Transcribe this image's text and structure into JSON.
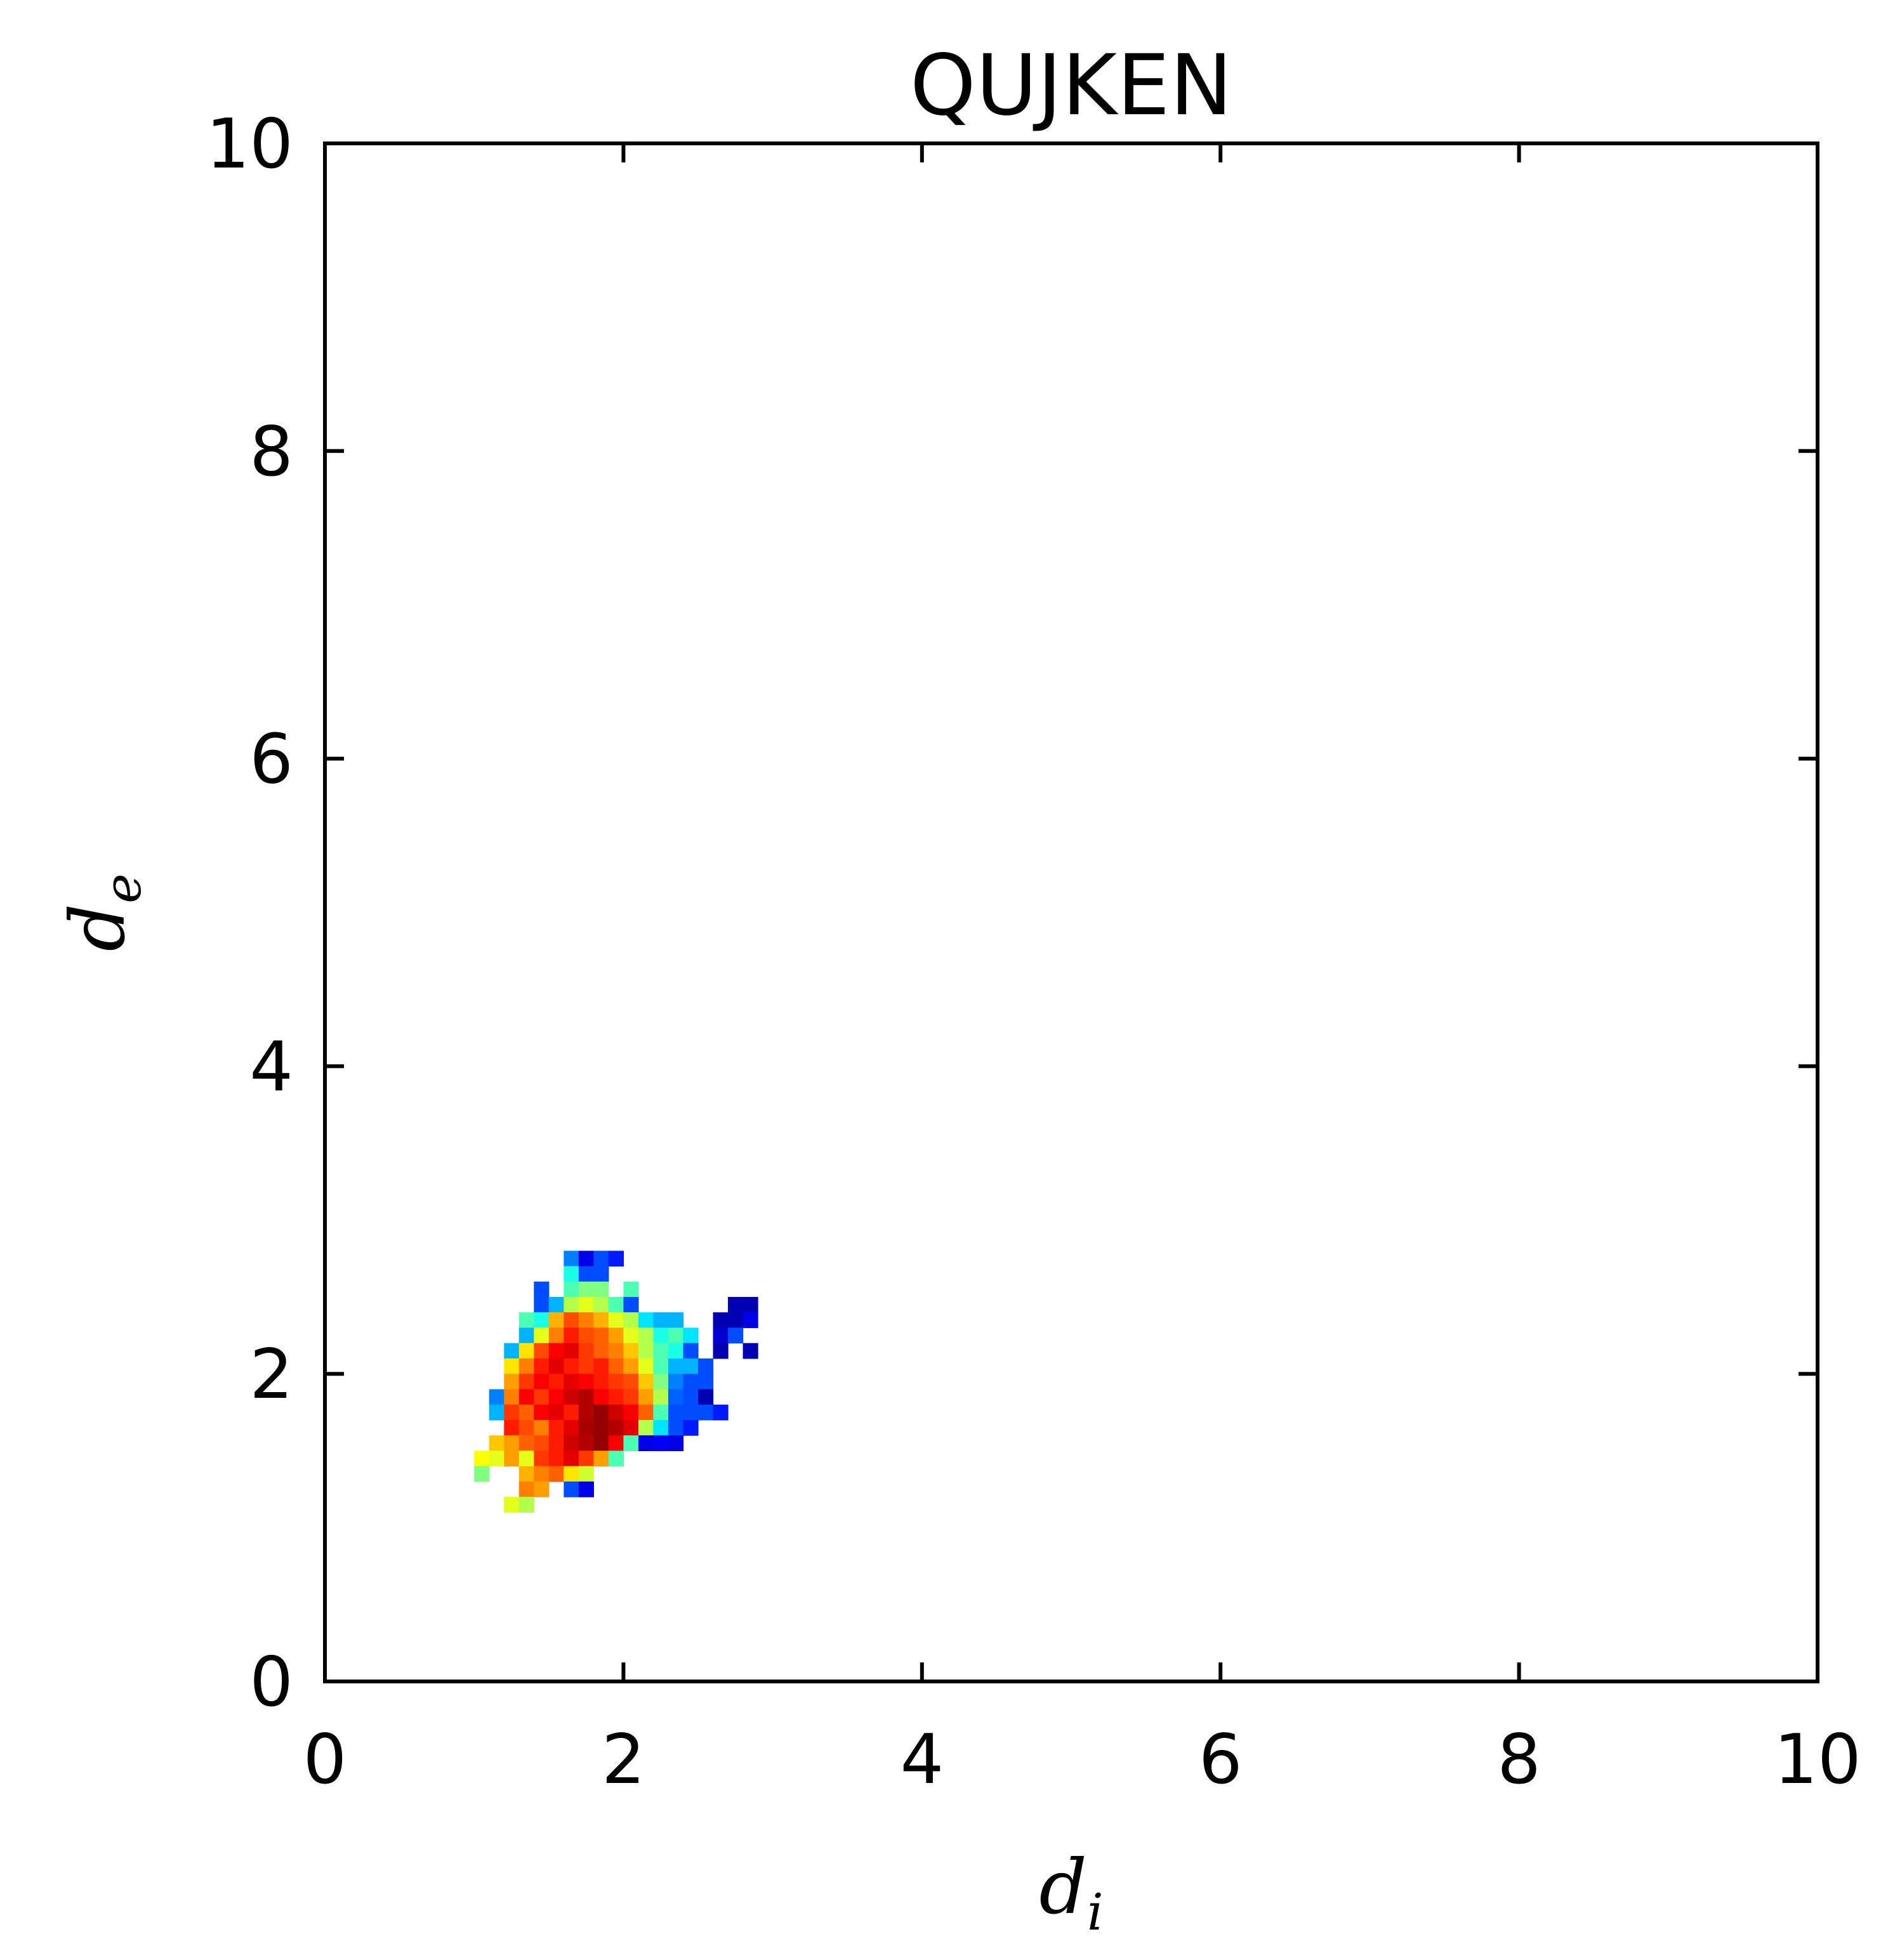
{
  "chart_data": {
    "type": "heatmap",
    "title": "QUJKEN",
    "xlabel": {
      "symbol": "d",
      "sub": "i"
    },
    "ylabel": {
      "symbol": "d",
      "sub": "e"
    },
    "xlim": [
      0,
      10
    ],
    "ylim": [
      0,
      10
    ],
    "xticks": [
      "0",
      "2",
      "4",
      "6",
      "8",
      "10"
    ],
    "yticks": [
      "0",
      "2",
      "4",
      "6",
      "8",
      "10"
    ],
    "bin_size": 0.1,
    "colormap": "jet",
    "grid": false,
    "cells": [
      [
        1.6,
        2.7,
        0.25
      ],
      [
        1.7,
        2.7,
        0.1
      ],
      [
        1.8,
        2.7,
        0.2
      ],
      [
        1.9,
        2.7,
        0.15
      ],
      [
        1.6,
        2.6,
        0.4
      ],
      [
        1.7,
        2.6,
        0.2
      ],
      [
        1.8,
        2.6,
        0.2
      ],
      [
        1.4,
        2.5,
        0.2
      ],
      [
        1.6,
        2.5,
        0.45
      ],
      [
        1.7,
        2.5,
        0.5
      ],
      [
        1.8,
        2.5,
        0.5
      ],
      [
        2.0,
        2.5,
        0.45
      ],
      [
        1.4,
        2.4,
        0.2
      ],
      [
        1.5,
        2.4,
        0.3
      ],
      [
        1.6,
        2.4,
        0.55
      ],
      [
        1.7,
        2.4,
        0.6
      ],
      [
        1.8,
        2.4,
        0.55
      ],
      [
        1.9,
        2.4,
        0.45
      ],
      [
        2.0,
        2.4,
        0.2
      ],
      [
        2.7,
        2.4,
        0.05
      ],
      [
        2.8,
        2.4,
        0.05
      ],
      [
        1.3,
        2.3,
        0.45
      ],
      [
        1.4,
        2.3,
        0.4
      ],
      [
        1.5,
        2.3,
        0.7
      ],
      [
        1.6,
        2.3,
        0.8
      ],
      [
        1.7,
        2.3,
        0.75
      ],
      [
        1.8,
        2.3,
        0.7
      ],
      [
        1.9,
        2.3,
        0.6
      ],
      [
        2.0,
        2.3,
        0.55
      ],
      [
        2.1,
        2.3,
        0.35
      ],
      [
        2.2,
        2.3,
        0.3
      ],
      [
        2.3,
        2.3,
        0.3
      ],
      [
        2.6,
        2.3,
        0.05
      ],
      [
        2.7,
        2.3,
        0.05
      ],
      [
        2.8,
        2.3,
        0.1
      ],
      [
        1.3,
        2.2,
        0.3
      ],
      [
        1.4,
        2.2,
        0.6
      ],
      [
        1.5,
        2.2,
        0.75
      ],
      [
        1.6,
        2.2,
        0.85
      ],
      [
        1.7,
        2.2,
        0.8
      ],
      [
        1.8,
        2.2,
        0.78
      ],
      [
        1.9,
        2.2,
        0.72
      ],
      [
        2.0,
        2.2,
        0.6
      ],
      [
        2.1,
        2.2,
        0.55
      ],
      [
        2.2,
        2.2,
        0.4
      ],
      [
        2.3,
        2.2,
        0.45
      ],
      [
        2.4,
        2.2,
        0.35
      ],
      [
        2.6,
        2.2,
        0.08
      ],
      [
        2.7,
        2.2,
        0.2
      ],
      [
        1.2,
        2.1,
        0.3
      ],
      [
        1.3,
        2.1,
        0.65
      ],
      [
        1.4,
        2.1,
        0.8
      ],
      [
        1.5,
        2.1,
        0.88
      ],
      [
        1.6,
        2.1,
        0.9
      ],
      [
        1.7,
        2.1,
        0.82
      ],
      [
        1.8,
        2.1,
        0.78
      ],
      [
        1.9,
        2.1,
        0.75
      ],
      [
        2.0,
        2.1,
        0.68
      ],
      [
        2.1,
        2.1,
        0.55
      ],
      [
        2.2,
        2.1,
        0.45
      ],
      [
        2.3,
        2.1,
        0.4
      ],
      [
        2.4,
        2.1,
        0.2
      ],
      [
        2.6,
        2.1,
        0.05
      ],
      [
        2.8,
        2.1,
        0.05
      ],
      [
        1.2,
        2.0,
        0.65
      ],
      [
        1.3,
        2.0,
        0.75
      ],
      [
        1.4,
        2.0,
        0.85
      ],
      [
        1.5,
        2.0,
        0.9
      ],
      [
        1.6,
        2.0,
        0.85
      ],
      [
        1.7,
        2.0,
        0.82
      ],
      [
        1.8,
        2.0,
        0.85
      ],
      [
        1.9,
        2.0,
        0.78
      ],
      [
        2.0,
        2.0,
        0.72
      ],
      [
        2.1,
        2.0,
        0.6
      ],
      [
        2.2,
        2.0,
        0.45
      ],
      [
        2.3,
        2.0,
        0.3
      ],
      [
        2.4,
        2.0,
        0.3
      ],
      [
        2.5,
        2.0,
        0.2
      ],
      [
        1.2,
        1.9,
        0.72
      ],
      [
        1.3,
        1.9,
        0.82
      ],
      [
        1.4,
        1.9,
        0.88
      ],
      [
        1.5,
        1.9,
        0.85
      ],
      [
        1.6,
        1.9,
        0.9
      ],
      [
        1.7,
        1.9,
        0.88
      ],
      [
        1.8,
        1.9,
        0.85
      ],
      [
        1.9,
        1.9,
        0.82
      ],
      [
        2.0,
        1.9,
        0.8
      ],
      [
        2.1,
        1.9,
        0.68
      ],
      [
        2.2,
        1.9,
        0.5
      ],
      [
        2.3,
        1.9,
        0.25
      ],
      [
        2.4,
        1.9,
        0.2
      ],
      [
        2.5,
        1.9,
        0.2
      ],
      [
        1.1,
        1.8,
        0.25
      ],
      [
        1.2,
        1.8,
        0.75
      ],
      [
        1.3,
        1.8,
        0.88
      ],
      [
        1.4,
        1.8,
        0.82
      ],
      [
        1.5,
        1.8,
        0.88
      ],
      [
        1.6,
        1.8,
        0.92
      ],
      [
        1.7,
        1.8,
        0.95
      ],
      [
        1.8,
        1.8,
        0.88
      ],
      [
        1.9,
        1.8,
        0.85
      ],
      [
        2.0,
        1.8,
        0.82
      ],
      [
        2.1,
        1.8,
        0.72
      ],
      [
        2.2,
        1.8,
        0.55
      ],
      [
        2.3,
        1.8,
        0.22
      ],
      [
        2.4,
        1.8,
        0.2
      ],
      [
        2.5,
        1.8,
        0.05
      ],
      [
        1.1,
        1.7,
        0.3
      ],
      [
        1.2,
        1.7,
        0.82
      ],
      [
        1.3,
        1.7,
        0.78
      ],
      [
        1.4,
        1.7,
        0.88
      ],
      [
        1.5,
        1.7,
        0.9
      ],
      [
        1.6,
        1.7,
        0.85
      ],
      [
        1.7,
        1.7,
        0.95
      ],
      [
        1.8,
        1.7,
        0.98
      ],
      [
        1.9,
        1.7,
        0.92
      ],
      [
        2.0,
        1.7,
        0.88
      ],
      [
        2.1,
        1.7,
        0.78
      ],
      [
        2.2,
        1.7,
        0.45
      ],
      [
        2.3,
        1.7,
        0.2
      ],
      [
        2.4,
        1.7,
        0.2
      ],
      [
        2.5,
        1.7,
        0.2
      ],
      [
        2.6,
        1.7,
        0.15
      ],
      [
        1.2,
        1.6,
        0.85
      ],
      [
        1.3,
        1.6,
        0.8
      ],
      [
        1.4,
        1.6,
        0.75
      ],
      [
        1.5,
        1.6,
        0.85
      ],
      [
        1.6,
        1.6,
        0.9
      ],
      [
        1.7,
        1.6,
        0.96
      ],
      [
        1.8,
        1.6,
        0.98
      ],
      [
        1.9,
        1.6,
        0.95
      ],
      [
        2.0,
        1.6,
        0.9
      ],
      [
        2.1,
        1.6,
        0.55
      ],
      [
        2.2,
        1.6,
        0.35
      ],
      [
        2.3,
        1.6,
        0.2
      ],
      [
        2.4,
        1.6,
        0.15
      ],
      [
        1.1,
        1.5,
        0.68
      ],
      [
        1.2,
        1.5,
        0.72
      ],
      [
        1.3,
        1.5,
        0.78
      ],
      [
        1.4,
        1.5,
        0.8
      ],
      [
        1.5,
        1.5,
        0.85
      ],
      [
        1.6,
        1.5,
        0.92
      ],
      [
        1.7,
        1.5,
        0.95
      ],
      [
        1.8,
        1.5,
        0.98
      ],
      [
        1.9,
        1.5,
        0.88
      ],
      [
        2.0,
        1.5,
        0.45
      ],
      [
        2.1,
        1.5,
        0.1
      ],
      [
        2.2,
        1.5,
        0.12
      ],
      [
        2.3,
        1.5,
        0.1
      ],
      [
        1.0,
        1.4,
        0.62
      ],
      [
        1.1,
        1.4,
        0.6
      ],
      [
        1.2,
        1.4,
        0.72
      ],
      [
        1.3,
        1.4,
        0.6
      ],
      [
        1.4,
        1.4,
        0.82
      ],
      [
        1.5,
        1.4,
        0.85
      ],
      [
        1.6,
        1.4,
        0.9
      ],
      [
        1.7,
        1.4,
        0.82
      ],
      [
        1.8,
        1.4,
        0.72
      ],
      [
        1.9,
        1.4,
        0.45
      ],
      [
        1.0,
        1.3,
        0.5
      ],
      [
        1.3,
        1.3,
        0.7
      ],
      [
        1.4,
        1.3,
        0.75
      ],
      [
        1.5,
        1.3,
        0.78
      ],
      [
        1.6,
        1.3,
        0.65
      ],
      [
        1.7,
        1.3,
        0.58
      ],
      [
        1.3,
        1.2,
        0.75
      ],
      [
        1.4,
        1.2,
        0.72
      ],
      [
        1.6,
        1.2,
        0.2
      ],
      [
        1.7,
        1.2,
        0.1
      ],
      [
        1.2,
        1.1,
        0.6
      ],
      [
        1.3,
        1.1,
        0.55
      ]
    ]
  }
}
